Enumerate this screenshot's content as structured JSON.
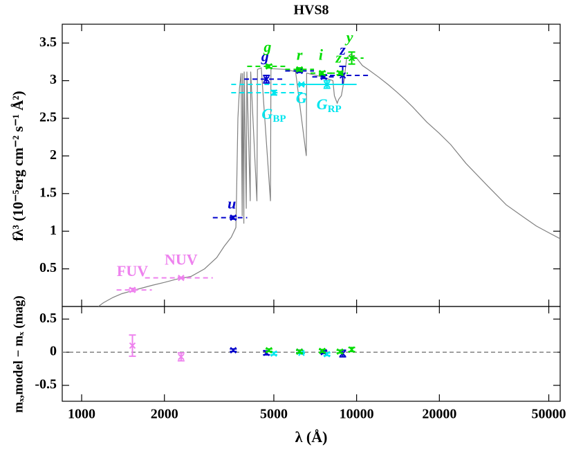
{
  "chart_data": {
    "type": "sed",
    "title": "HVS8",
    "x_label": "λ (Å)",
    "y_label": "fλ³ (10⁻⁵erg cm⁻² s⁻¹ Å²)",
    "log_x": true,
    "xlim": [
      850,
      55000
    ],
    "xticks": [
      1000,
      2000,
      5000,
      10000,
      20000,
      50000
    ],
    "ylim": [
      0,
      3.75
    ],
    "yticks": [
      0.5,
      1,
      1.5,
      2,
      2.5,
      3,
      3.5
    ],
    "model": {
      "color": "#808080",
      "x": [
        1150,
        1200,
        1300,
        1400,
        1500,
        1600,
        1800,
        2000,
        2200,
        2500,
        2800,
        3100,
        3300,
        3500,
        3640,
        3660,
        3700,
        3750,
        3800,
        3835,
        3850,
        3889,
        3900,
        3970,
        3990,
        4102,
        4120,
        4340,
        4360,
        4500,
        4861,
        4880,
        5500,
        6000,
        6563,
        6580,
        7500,
        8200,
        8300,
        8500,
        8600,
        8800,
        9000,
        9200,
        9500,
        10000,
        10500,
        11000,
        12000,
        13000,
        14000,
        15000,
        16000,
        18000,
        20000,
        22000,
        25000,
        30000,
        35000,
        40000,
        45000,
        50000,
        55000
      ],
      "values": [
        0.0,
        0.05,
        0.12,
        0.17,
        0.2,
        0.23,
        0.28,
        0.32,
        0.36,
        0.4,
        0.5,
        0.65,
        0.8,
        0.92,
        1.05,
        1.5,
        2.5,
        2.9,
        3.1,
        1.2,
        3.1,
        1.1,
        3.12,
        1.3,
        3.12,
        1.4,
        3.12,
        1.4,
        3.15,
        3.17,
        1.4,
        3.16,
        3.15,
        3.12,
        2.0,
        3.1,
        3.05,
        3.0,
        2.8,
        2.7,
        2.75,
        2.8,
        3.0,
        3.3,
        3.35,
        3.3,
        3.2,
        3.15,
        3.05,
        2.95,
        2.85,
        2.75,
        2.65,
        2.45,
        2.3,
        2.15,
        1.9,
        1.6,
        1.35,
        1.2,
        1.07,
        0.98,
        0.9
      ]
    },
    "photometry": [
      {
        "label": "FUV",
        "color": "#ee82ee",
        "x": 1530,
        "xmin": 1340,
        "xmax": 1800,
        "y": 0.22,
        "yerr": 0.02,
        "residual": 0.1,
        "residual_err": 0.16
      },
      {
        "label": "NUV",
        "color": "#ee82ee",
        "x": 2300,
        "xmin": 1700,
        "xmax": 3000,
        "y": 0.38,
        "yerr": 0.01,
        "residual": -0.07,
        "residual_err": 0.06
      },
      {
        "label": "u",
        "color": "#0000cc",
        "x": 3560,
        "xmin": 3000,
        "xmax": 4000,
        "y": 1.18,
        "yerr": 0.02,
        "residual": 0.03,
        "residual_err": 0.02
      },
      {
        "label": "g",
        "color": "#0000cc",
        "x": 4700,
        "xmin": 3900,
        "xmax": 5500,
        "y": 3.02,
        "yerr": 0.05,
        "residual": -0.01,
        "residual_err": 0.03
      },
      {
        "color": "#0000cc",
        "x": 6200,
        "xmin": 5500,
        "xmax": 7000,
        "y": 3.13,
        "yerr": 0.02,
        "residual": 0.01,
        "residual_err": 0.02
      },
      {
        "color": "#0000cc",
        "x": 7600,
        "xmin": 6900,
        "xmax": 8400,
        "y": 3.05,
        "yerr": 0.02,
        "residual": 0.0,
        "residual_err": 0.02
      },
      {
        "label": "z",
        "color": "#0000cc",
        "x": 8900,
        "xmin": 8000,
        "xmax": 11000,
        "y": 3.07,
        "yerr": 0.12,
        "residual": -0.02,
        "residual_err": 0.05
      },
      {
        "label": "G",
        "sub": "BP",
        "color": "#00e5ee",
        "x": 5000,
        "xmin": 3500,
        "xmax": 6500,
        "y": 2.84,
        "yerr": 0.03,
        "residual": -0.02,
        "residual_err": 0.02
      },
      {
        "label": "G",
        "color": "#00e5ee",
        "x": 6300,
        "xmin": 3500,
        "xmax": 10000,
        "y": 2.95,
        "yerr": 0.01,
        "residual": -0.01,
        "residual_err": 0.01
      },
      {
        "label": "G",
        "sub": "RP",
        "color": "#00e5ee",
        "x": 7800,
        "xmin": 6300,
        "xmax": 10000,
        "y": 2.95,
        "yerr": 0.05,
        "residual": -0.03,
        "residual_err": 0.02
      },
      {
        "label": "g",
        "color": "#00dd00",
        "x": 4800,
        "xmin": 4000,
        "xmax": 5500,
        "y": 3.19,
        "yerr": 0.02,
        "residual": 0.03,
        "residual_err": 0.02
      },
      {
        "label": "r",
        "color": "#00dd00",
        "x": 6200,
        "xmin": 5500,
        "xmax": 7000,
        "y": 3.15,
        "yerr": 0.02,
        "residual": 0.01,
        "residual_err": 0.02
      },
      {
        "label": "i",
        "color": "#00dd00",
        "x": 7500,
        "xmin": 6800,
        "xmax": 8300,
        "y": 3.1,
        "yerr": 0.02,
        "residual": 0.02,
        "residual_err": 0.02
      },
      {
        "label": "z",
        "color": "#00dd00",
        "x": 8700,
        "xmin": 8000,
        "xmax": 9300,
        "y": 3.1,
        "yerr": 0.02,
        "residual": 0.01,
        "residual_err": 0.02
      },
      {
        "label": "y",
        "color": "#00dd00",
        "x": 9600,
        "xmin": 9000,
        "xmax": 10600,
        "y": 3.3,
        "yerr": 0.08,
        "residual": 0.04,
        "residual_err": 0.03
      }
    ],
    "residuals": {
      "y_label": "mₓ,model − mₓ (mag)",
      "ylim": [
        -0.74,
        0.69
      ],
      "yticks": [
        -0.5,
        0,
        0.5
      ]
    }
  }
}
